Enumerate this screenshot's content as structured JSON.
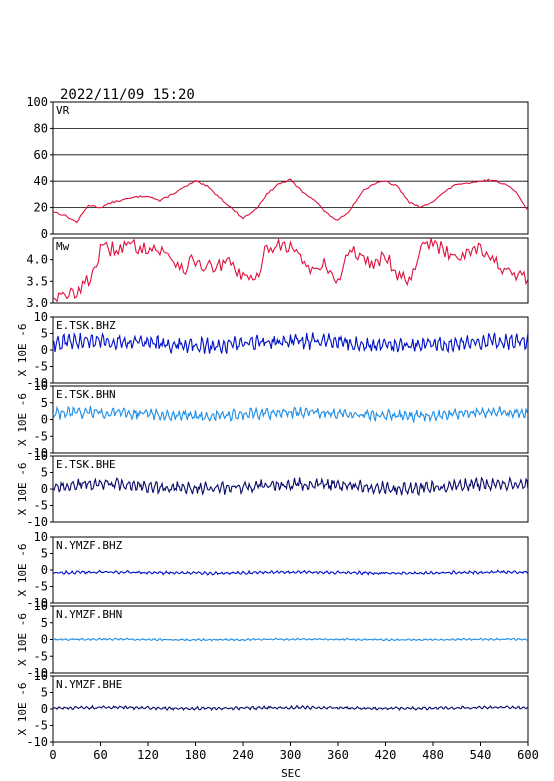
{
  "header": {
    "timestamp": "2022/11/09 15:20"
  },
  "x_axis": {
    "label": "SEC",
    "ticks": [
      0,
      60,
      120,
      180,
      240,
      300,
      360,
      420,
      480,
      540,
      600
    ],
    "range": [
      0,
      600
    ]
  },
  "chart_data": [
    {
      "type": "line",
      "label": "VR",
      "ylim": [
        0,
        100
      ],
      "yticks": [
        0,
        20,
        40,
        60,
        80,
        100
      ],
      "grid": "horizontal",
      "color": "#e0103c",
      "x": [
        0,
        15,
        30,
        45,
        60,
        75,
        90,
        105,
        120,
        135,
        150,
        165,
        180,
        195,
        210,
        225,
        240,
        255,
        270,
        285,
        300,
        315,
        330,
        345,
        360,
        375,
        390,
        405,
        420,
        435,
        450,
        465,
        480,
        495,
        510,
        525,
        540,
        555,
        570,
        585,
        600
      ],
      "values": [
        17,
        14,
        9,
        22,
        20,
        24,
        26,
        28,
        29,
        25,
        30,
        35,
        40,
        36,
        28,
        20,
        12,
        18,
        30,
        38,
        41,
        32,
        26,
        16,
        10,
        18,
        32,
        38,
        40,
        36,
        24,
        20,
        25,
        32,
        38,
        38,
        40,
        41,
        38,
        32,
        18
      ]
    },
    {
      "type": "line",
      "label": "Mw",
      "ylim": [
        3.0,
        4.5
      ],
      "yticks": [
        3.0,
        3.5,
        4.0
      ],
      "color": "#e0103c",
      "x": [
        0,
        15,
        30,
        45,
        60,
        75,
        90,
        105,
        120,
        135,
        150,
        165,
        180,
        195,
        210,
        225,
        240,
        255,
        270,
        285,
        300,
        315,
        330,
        345,
        360,
        375,
        390,
        405,
        420,
        435,
        450,
        465,
        480,
        495,
        510,
        525,
        540,
        555,
        570,
        585,
        600
      ],
      "values": [
        3.2,
        3.1,
        3.3,
        3.5,
        4.2,
        4.25,
        4.3,
        4.3,
        4.3,
        4.2,
        4.05,
        3.8,
        4.0,
        3.8,
        3.85,
        3.9,
        3.6,
        3.45,
        4.3,
        4.35,
        4.3,
        4.0,
        3.7,
        3.9,
        3.45,
        4.3,
        4.0,
        3.95,
        4.1,
        3.7,
        3.5,
        4.35,
        4.35,
        4.2,
        4.1,
        4.2,
        4.3,
        4.0,
        3.75,
        3.6,
        3.55
      ]
    },
    {
      "type": "line",
      "label": "E.TSK.BHZ",
      "ylim": [
        -10,
        10
      ],
      "yticks": [
        -10,
        -5,
        0,
        5,
        10
      ],
      "ylabel": "X 10E -6",
      "color": "#0010c8",
      "amplitude": 2.5,
      "offset": 2.0
    },
    {
      "type": "line",
      "label": "E.TSK.BHN",
      "ylim": [
        -10,
        10
      ],
      "yticks": [
        -10,
        -5,
        0,
        5,
        10
      ],
      "ylabel": "X 10E -6",
      "color": "#1e8ee6",
      "amplitude": 1.8,
      "offset": 1.6
    },
    {
      "type": "line",
      "label": "E.TSK.BHE",
      "ylim": [
        -10,
        10
      ],
      "yticks": [
        -10,
        -5,
        0,
        5,
        10
      ],
      "ylabel": "X 10E -6",
      "color": "#0a0a6a",
      "amplitude": 2.0,
      "offset": 0.8
    },
    {
      "type": "line",
      "label": "N.YMZF.BHZ",
      "ylim": [
        -10,
        10
      ],
      "yticks": [
        -10,
        -5,
        0,
        5,
        10
      ],
      "ylabel": "X 10E -6",
      "color": "#0010c8",
      "amplitude": 0.5,
      "offset": -0.8
    },
    {
      "type": "line",
      "label": "N.YMZF.BHN",
      "ylim": [
        -10,
        10
      ],
      "yticks": [
        -10,
        -5,
        0,
        5,
        10
      ],
      "ylabel": "X 10E -6",
      "color": "#1e8ee6",
      "amplitude": 0.3,
      "offset": 0.0
    },
    {
      "type": "line",
      "label": "N.YMZF.BHE",
      "ylim": [
        -10,
        10
      ],
      "yticks": [
        -10,
        -5,
        0,
        5,
        10
      ],
      "ylabel": "X 10E -6",
      "color": "#0a0a6a",
      "amplitude": 0.5,
      "offset": 0.3
    }
  ]
}
